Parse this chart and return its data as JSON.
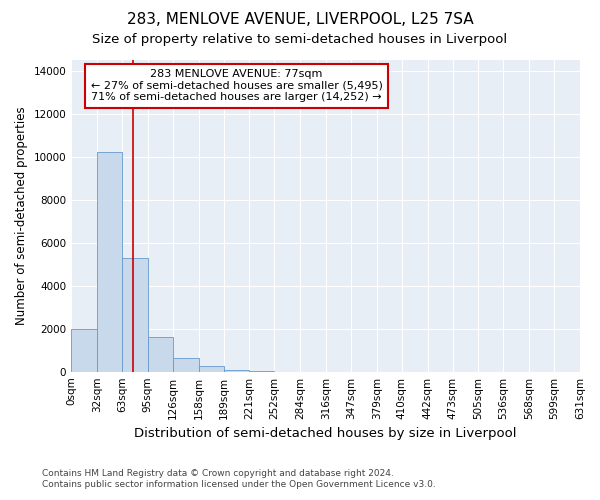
{
  "title": "283, MENLOVE AVENUE, LIVERPOOL, L25 7SA",
  "subtitle": "Size of property relative to semi-detached houses in Liverpool",
  "xlabel": "Distribution of semi-detached houses by size in Liverpool",
  "ylabel": "Number of semi-detached properties",
  "footnote1": "Contains HM Land Registry data © Crown copyright and database right 2024.",
  "footnote2": "Contains public sector information licensed under the Open Government Licence v3.0.",
  "property_size": 77,
  "property_label": "283 MENLOVE AVENUE: 77sqm",
  "pct_smaller": 27,
  "n_smaller": 5495,
  "pct_larger": 71,
  "n_larger": 14252,
  "bar_color": "#c8d9ec",
  "bar_edge_color": "#6699cc",
  "vline_color": "#cc0000",
  "annotation_box_edgecolor": "#cc0000",
  "bin_edges": [
    0,
    32,
    63,
    95,
    126,
    158,
    189,
    221,
    252,
    284,
    316,
    347,
    379,
    410,
    442,
    473,
    505,
    536,
    568,
    599,
    631
  ],
  "bin_labels": [
    "0sqm",
    "32sqm",
    "63sqm",
    "95sqm",
    "126sqm",
    "158sqm",
    "189sqm",
    "221sqm",
    "252sqm",
    "284sqm",
    "316sqm",
    "347sqm",
    "379sqm",
    "410sqm",
    "442sqm",
    "473sqm",
    "505sqm",
    "536sqm",
    "568sqm",
    "599sqm",
    "631sqm"
  ],
  "bar_heights": [
    2000,
    10200,
    5300,
    1600,
    650,
    250,
    100,
    50,
    0,
    0,
    0,
    0,
    0,
    0,
    0,
    0,
    0,
    0,
    0,
    0
  ],
  "ylim": [
    0,
    14500
  ],
  "yticks": [
    0,
    2000,
    4000,
    6000,
    8000,
    10000,
    12000,
    14000
  ],
  "background_color": "#e8eef6",
  "grid_color": "#ffffff",
  "title_fontsize": 11,
  "subtitle_fontsize": 9.5,
  "tick_fontsize": 7.5,
  "ylabel_fontsize": 8.5,
  "xlabel_fontsize": 9.5,
  "footnote_fontsize": 6.5
}
